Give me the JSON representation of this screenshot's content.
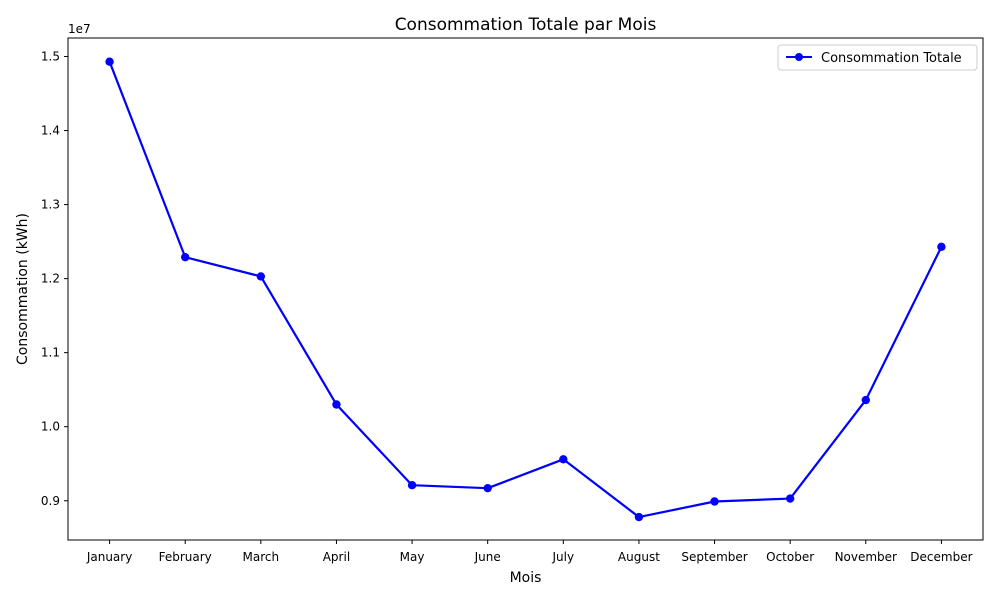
{
  "chart_data": {
    "type": "line",
    "title": "Consommation Totale par Mois",
    "xlabel": "Mois",
    "ylabel": "Consommation (kWh)",
    "offset_label": "1e7",
    "categories": [
      "January",
      "February",
      "March",
      "April",
      "May",
      "June",
      "July",
      "August",
      "September",
      "October",
      "November",
      "December"
    ],
    "series": [
      {
        "name": "Consommation Totale",
        "color": "#0000ff",
        "marker": "circle",
        "values": [
          14930000,
          12290000,
          12030000,
          10300000,
          9210000,
          9170000,
          9560000,
          8780000,
          8990000,
          9030000,
          10360000,
          12430000
        ]
      }
    ],
    "ylim": [
      8470000,
      15250000
    ],
    "yticks": [
      9000000,
      10000000,
      11000000,
      12000000,
      13000000,
      14000000,
      15000000
    ],
    "ytick_labels": [
      "0.9",
      "1.0",
      "1.1",
      "1.2",
      "1.3",
      "1.4",
      "1.5"
    ],
    "legend_position": "top-right",
    "grid": false
  }
}
